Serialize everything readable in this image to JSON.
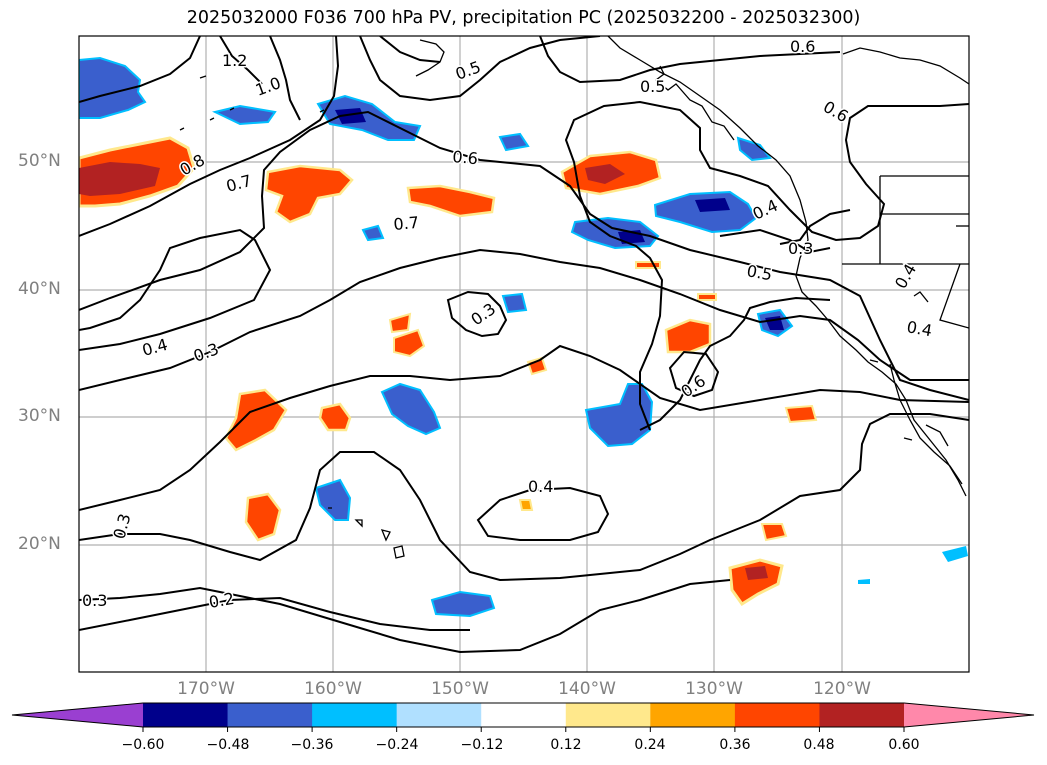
{
  "title": "2025032000 F036 700 hPa PV, precipitation PC (2025032200 - 2025032300)",
  "map": {
    "lat_labels": [
      "50°N",
      "40°N",
      "30°N",
      "20°N"
    ],
    "lon_labels": [
      "170°W",
      "160°W",
      "150°W",
      "140°W",
      "130°W",
      "120°W"
    ],
    "contour_labels": [
      "1.2",
      "1.0",
      "0.8",
      "0.7",
      "0.6",
      "0.5",
      "0.7",
      "0.5",
      "0.6",
      "0.6",
      "0.4",
      "0.3",
      "0.5",
      "0.4",
      "0.3",
      "0.3",
      "0.4",
      "0.6",
      "0.4",
      "0.3",
      "0.3",
      "0.2",
      "0.4"
    ]
  },
  "colorbar": {
    "ticks": [
      "−0.60",
      "−0.48",
      "−0.36",
      "−0.24",
      "−0.12",
      "0.12",
      "0.24",
      "0.36",
      "0.48",
      "0.60"
    ],
    "colors": [
      "#9a3fd1",
      "#00008b",
      "#3a5fcd",
      "#00bfff",
      "#b0e0ff",
      "#ffffff",
      "#ffe88c",
      "#ffa500",
      "#ff4500",
      "#b22222",
      "#ff88aa"
    ]
  },
  "fill_colors": {
    "dark_blue": "#00008b",
    "mid_blue": "#3a5fcd",
    "light_blue": "#00bfff",
    "dark_red": "#b22222",
    "red": "#ff4500",
    "orange": "#ffa500",
    "yellow": "#ffe88c"
  }
}
